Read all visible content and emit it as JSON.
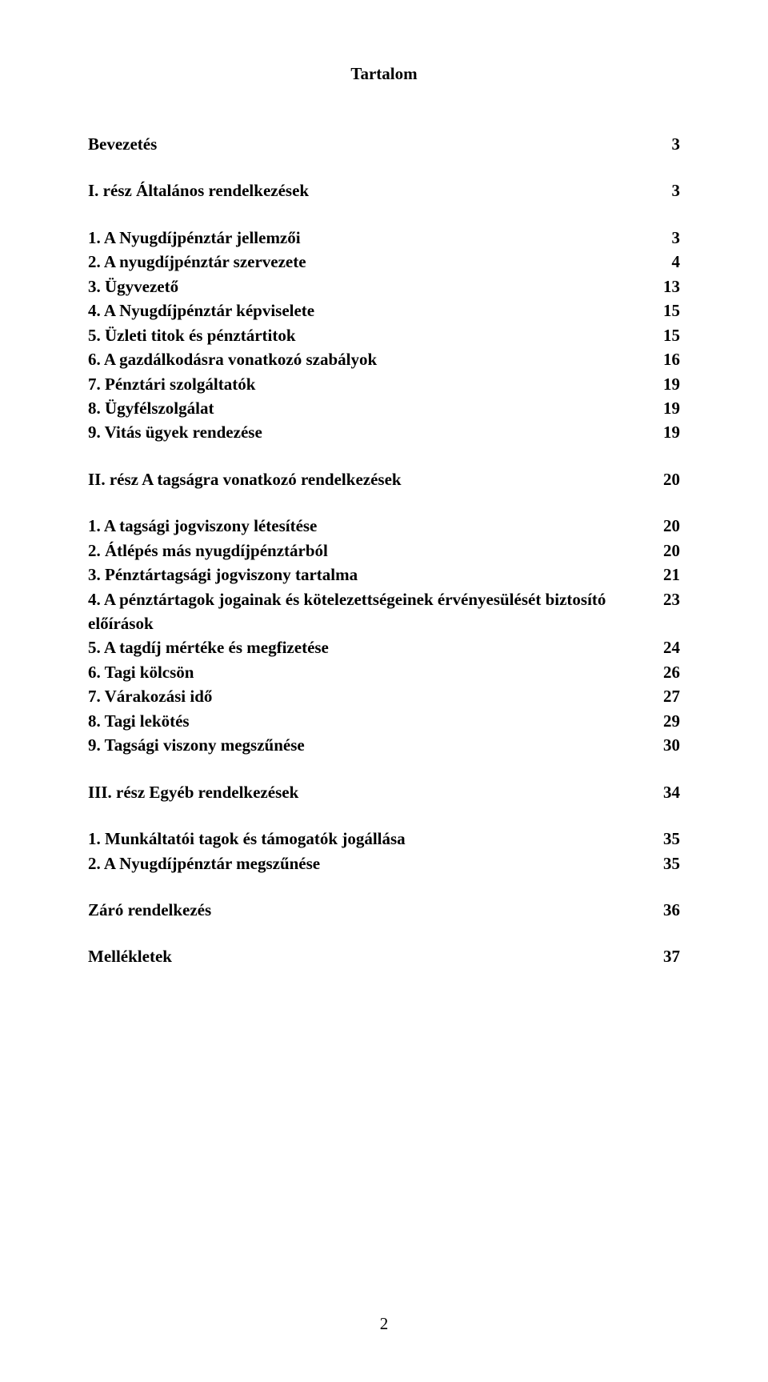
{
  "title": "Tartalom",
  "page_number": "2",
  "groups": [
    {
      "lines": [
        {
          "label": "Bevezetés",
          "page": "3"
        }
      ]
    },
    {
      "lines": [
        {
          "label": "I. rész Általános rendelkezések",
          "page": "3"
        }
      ]
    },
    {
      "lines": [
        {
          "label": "1. A Nyugdíjpénztár jellemzői",
          "page": "3"
        },
        {
          "label": "2. A nyugdíjpénztár szervezete",
          "page": "4"
        },
        {
          "label": "3. Ügyvezető",
          "page": "13"
        },
        {
          "label": "4. A Nyugdíjpénztár képviselete",
          "page": "15"
        },
        {
          "label": "5. Üzleti titok és  pénztártitok",
          "page": "15"
        },
        {
          "label": "6. A gazdálkodásra vonatkozó szabályok",
          "page": "16"
        },
        {
          "label": "7. Pénztári szolgáltatók",
          "page": "19"
        },
        {
          "label": "8. Ügyfélszolgálat",
          "page": "19"
        },
        {
          "label": "9. Vitás ügyek rendezése",
          "page": "19"
        }
      ]
    },
    {
      "lines": [
        {
          "label": "II. rész A tagságra vonatkozó rendelkezések",
          "page": "20"
        }
      ]
    },
    {
      "lines": [
        {
          "label": "1. A tagsági jogviszony létesítése",
          "page": "20"
        },
        {
          "label": "2. Átlépés más nyugdíjpénztárból",
          "page": "20"
        },
        {
          "label": "3. Pénztártagsági jogviszony tartalma",
          "page": "21"
        },
        {
          "label": "4. A pénztártagok jogainak és kötelezettségeinek érvényesülését biztosító előírások",
          "page": "23"
        },
        {
          "label": "5. A  tagdíj mértéke és megfizetése",
          "page": "24"
        },
        {
          "label": "6. Tagi kölcsön",
          "page": "26"
        },
        {
          "label": "7. Várakozási idő",
          "page": "27"
        },
        {
          "label": "8. Tagi lekötés",
          "page": "29"
        },
        {
          "label": "9. Tagsági viszony megszűnése",
          "page": "30"
        }
      ]
    },
    {
      "lines": [
        {
          "label": "III. rész Egyéb rendelkezések",
          "page": "34"
        }
      ]
    },
    {
      "lines": [
        {
          "label": "1. Munkáltatói tagok és támogatók jogállása",
          "page": "35"
        },
        {
          "label": "2. A Nyugdíjpénztár megszűnése",
          "page": "35"
        }
      ]
    },
    {
      "lines": [
        {
          "label": "Záró rendelkezés",
          "page": "36"
        }
      ]
    },
    {
      "lines": [
        {
          "label": "Mellékletek",
          "page": "37"
        }
      ]
    }
  ]
}
